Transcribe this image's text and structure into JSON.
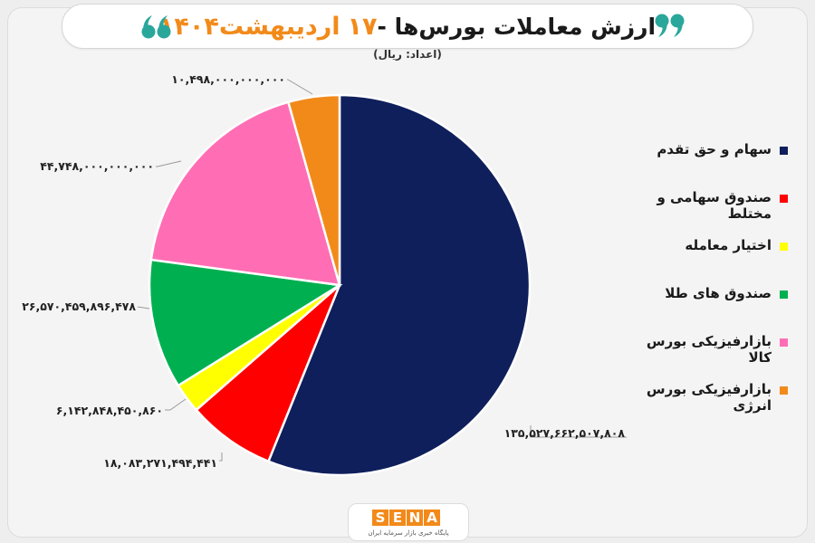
{
  "header": {
    "title_prefix": "ارزش معاملات بورس‌ها - ",
    "title_day": "۱۷",
    "title_date": "اردیبهشت۱۴۰۴",
    "unit_note": "(اعداد: ریال)"
  },
  "colors": {
    "accent": "#f28a1a",
    "quote": "#2aa79b"
  },
  "icons": {
    "quote_right": "double-quote-close-icon",
    "quote_left": "double-quote-open-icon"
  },
  "chart_data": {
    "type": "pie",
    "title": "ارزش معاملات بورس‌ها - ۱۷ اردیبهشت۱۴۰۴",
    "unit": "ریال",
    "legend_position": "right",
    "slices": [
      {
        "name": "سهام و حق تقدم",
        "value": 135527662507808,
        "label": "۱۳۵,۵۲۷,۶۶۲,۵۰۷,۸۰۸",
        "color": "#0f1f5c"
      },
      {
        "name": "صندوق سهامی و مختلط",
        "value": 18083271494441,
        "label": "۱۸,۰۸۳,۲۷۱,۴۹۴,۴۴۱",
        "color": "#ff0000"
      },
      {
        "name": "اختیار معامله",
        "value": 6142848450860,
        "label": "۶,۱۴۲,۸۴۸,۴۵۰,۸۶۰",
        "color": "#ffff00"
      },
      {
        "name": "صندوق های طلا",
        "value": 26570459896478,
        "label": "۲۶,۵۷۰,۴۵۹,۸۹۶,۴۷۸",
        "color": "#00b050"
      },
      {
        "name": "بازارفیزیکی بورس کالا",
        "value": 44748000000000,
        "label": "۴۴,۷۴۸,۰۰۰,۰۰۰,۰۰۰",
        "color": "#ff6eb4"
      },
      {
        "name": "بازارفیزیکی بورس انرژی",
        "value": 10498000000000,
        "label": "۱۰,۴۹۸,۰۰۰,۰۰۰,۰۰۰",
        "color": "#f28a1a"
      }
    ]
  },
  "footer": {
    "logo_letters": [
      "S",
      "E",
      "N",
      "A"
    ],
    "logo_tagline": "پایگاه خبری بازار سرمایه ایران"
  }
}
